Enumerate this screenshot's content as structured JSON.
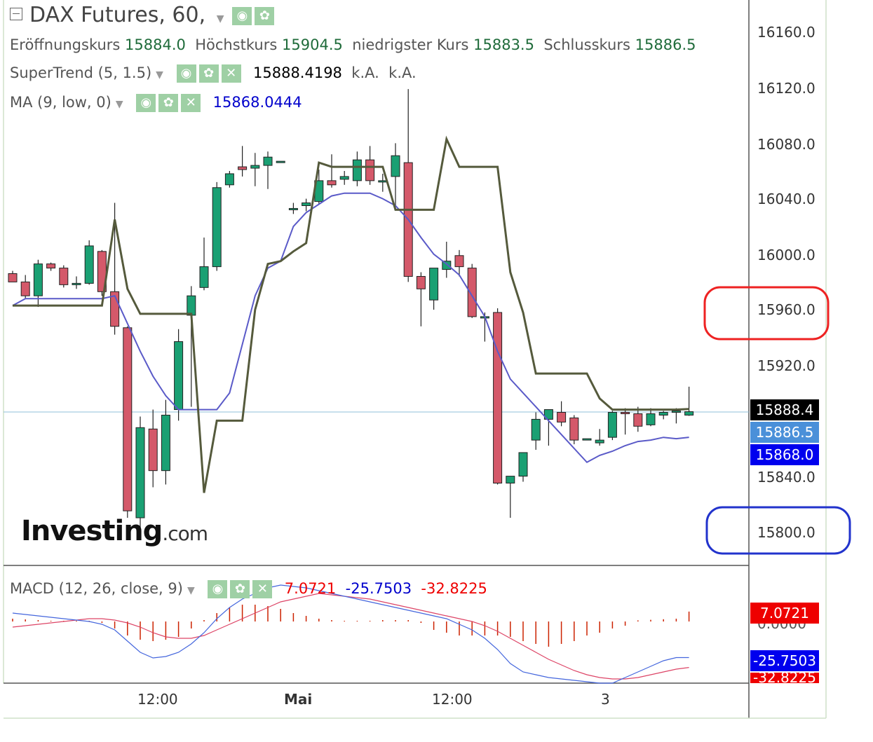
{
  "header": {
    "title": "DAX Futures, 60,",
    "ohlc": [
      {
        "label": "Eröffnungskurs",
        "value": "15884.0"
      },
      {
        "label": "Höchstkurs",
        "value": "15904.5"
      },
      {
        "label": "niedrigster Kurs",
        "value": "15883.5"
      },
      {
        "label": "Schlusskurs",
        "value": "15886.5"
      }
    ]
  },
  "indicators": {
    "supertrend": {
      "label": "SuperTrend (5, 1.5)",
      "value": "15888.4198",
      "extra1": "k.A.",
      "extra2": "k.A."
    },
    "ma": {
      "label": "MA (9, low, 0)",
      "value": "15868.0444"
    },
    "macd": {
      "label": "MACD (12, 26, close, 9)",
      "v1": "7.0721",
      "v2": "-25.7503",
      "v3": "-32.8225"
    }
  },
  "price_axis": {
    "ticks": [
      "16160.0",
      "16120.0",
      "16080.0",
      "16040.0",
      "16000.0",
      "15960.0",
      "15920.0",
      "15840.0",
      "15800.0"
    ],
    "tags": [
      {
        "name": "supertrend-tag",
        "text": "15888.4",
        "color": "#000000"
      },
      {
        "name": "close-tag",
        "text": "15886.5",
        "color": "#4a90d9"
      },
      {
        "name": "ma-tag",
        "text": "15868.0",
        "color": "#0000ee"
      }
    ]
  },
  "macd_axis": {
    "tags": [
      {
        "name": "macd-tag",
        "text": "7.0721",
        "color": "#ee0000"
      },
      {
        "name": "signal-tag",
        "text": "-25.7503",
        "color": "#0000ee"
      },
      {
        "name": "hist-tag",
        "text": "-32.8225",
        "color": "#ee0000"
      }
    ],
    "zero_label": "0.0000"
  },
  "time_axis": {
    "ticks": [
      "12:00",
      "Mai",
      "12:00",
      "3"
    ]
  },
  "logo": {
    "main": "Investing",
    "suffix": ".com"
  },
  "colors": {
    "up": "#1aa073",
    "down": "#d4596a",
    "supertrend": "#555a3c",
    "ma": "#5a5ac8",
    "macd_line": "#4466dd",
    "signal_line": "#dd4466",
    "hist": "#cc2200",
    "annot_red": "#ee2222",
    "annot_blue": "#2233cc"
  },
  "chart_data": {
    "type": "candlestick",
    "ylim": [
      15800,
      16160
    ],
    "candles": [
      {
        "o": 15986,
        "h": 15988,
        "l": 15980,
        "c": 15980
      },
      {
        "o": 15980,
        "h": 15985,
        "l": 15968,
        "c": 15970
      },
      {
        "o": 15970,
        "h": 15996,
        "l": 15962,
        "c": 15993
      },
      {
        "o": 15993,
        "h": 15994,
        "l": 15988,
        "c": 15990
      },
      {
        "o": 15990,
        "h": 15992,
        "l": 15976,
        "c": 15978
      },
      {
        "o": 15978,
        "h": 15984,
        "l": 15975,
        "c": 15979
      },
      {
        "o": 15979,
        "h": 16010,
        "l": 15978,
        "c": 16006
      },
      {
        "o": 16002,
        "h": 16003,
        "l": 15970,
        "c": 15973
      },
      {
        "o": 15973,
        "h": 16037,
        "l": 15942,
        "c": 15948
      },
      {
        "o": 15947,
        "h": 15948,
        "l": 15810,
        "c": 15815
      },
      {
        "o": 15810,
        "h": 15883,
        "l": 15802,
        "c": 15875
      },
      {
        "o": 15874,
        "h": 15888,
        "l": 15832,
        "c": 15844
      },
      {
        "o": 15844,
        "h": 15895,
        "l": 15834,
        "c": 15884
      },
      {
        "o": 15888,
        "h": 15946,
        "l": 15880,
        "c": 15937
      },
      {
        "o": 15956,
        "h": 15977,
        "l": 15890,
        "c": 15970
      },
      {
        "o": 15976,
        "h": 16012,
        "l": 15974,
        "c": 15991
      },
      {
        "o": 15991,
        "h": 16052,
        "l": 15988,
        "c": 16048
      },
      {
        "o": 16050,
        "h": 16060,
        "l": 16048,
        "c": 16058
      },
      {
        "o": 16063,
        "h": 16078,
        "l": 16056,
        "c": 16061
      },
      {
        "o": 16062,
        "h": 16073,
        "l": 16049,
        "c": 16064
      },
      {
        "o": 16064,
        "h": 16074,
        "l": 16047,
        "c": 16070
      },
      {
        "o": 16067,
        "h": 16067,
        "l": 16066,
        "c": 16067
      },
      {
        "o": 16033,
        "h": 16037,
        "l": 16029,
        "c": 16033
      },
      {
        "o": 16035,
        "h": 16040,
        "l": 16031,
        "c": 16037
      },
      {
        "o": 16038,
        "h": 16061,
        "l": 16036,
        "c": 16053
      },
      {
        "o": 16053,
        "h": 16072,
        "l": 16048,
        "c": 16050
      },
      {
        "o": 16054,
        "h": 16060,
        "l": 16050,
        "c": 16056
      },
      {
        "o": 16053,
        "h": 16074,
        "l": 16049,
        "c": 16068
      },
      {
        "o": 16068,
        "h": 16078,
        "l": 16050,
        "c": 16053
      },
      {
        "o": 16052,
        "h": 16058,
        "l": 16045,
        "c": 16053
      },
      {
        "o": 16056,
        "h": 16080,
        "l": 16033,
        "c": 16071
      },
      {
        "o": 16066,
        "h": 16119,
        "l": 15980,
        "c": 15984
      },
      {
        "o": 15984,
        "h": 15987,
        "l": 15948,
        "c": 15975
      },
      {
        "o": 15967,
        "h": 15990,
        "l": 15960,
        "c": 15990
      },
      {
        "o": 15989,
        "h": 16009,
        "l": 15983,
        "c": 15995
      },
      {
        "o": 15999,
        "h": 16003,
        "l": 15984,
        "c": 15991
      },
      {
        "o": 15990,
        "h": 15993,
        "l": 15954,
        "c": 15955
      },
      {
        "o": 15954,
        "h": 15958,
        "l": 15937,
        "c": 15955
      },
      {
        "o": 15958,
        "h": 15961,
        "l": 15834,
        "c": 15835
      },
      {
        "o": 15835,
        "h": 15840,
        "l": 15810,
        "c": 15840
      },
      {
        "o": 15840,
        "h": 15854,
        "l": 15836,
        "c": 15857
      },
      {
        "o": 15866,
        "h": 15886,
        "l": 15859,
        "c": 15881
      },
      {
        "o": 15881,
        "h": 15887,
        "l": 15862,
        "c": 15888
      },
      {
        "o": 15886,
        "h": 15894,
        "l": 15876,
        "c": 15879
      },
      {
        "o": 15882,
        "h": 15884,
        "l": 15863,
        "c": 15866
      },
      {
        "o": 15866,
        "h": 15866,
        "l": 15866,
        "c": 15867
      },
      {
        "o": 15864,
        "h": 15874,
        "l": 15862,
        "c": 15866
      },
      {
        "o": 15868,
        "h": 15887,
        "l": 15866,
        "c": 15886
      },
      {
        "o": 15886,
        "h": 15889,
        "l": 15870,
        "c": 15885
      },
      {
        "o": 15885,
        "h": 15890,
        "l": 15872,
        "c": 15876
      },
      {
        "o": 15877,
        "h": 15889,
        "l": 15876,
        "c": 15885
      },
      {
        "o": 15884,
        "h": 15887,
        "l": 15881,
        "c": 15886
      },
      {
        "o": 15886,
        "h": 15889,
        "l": 15878,
        "c": 15887
      },
      {
        "o": 15884,
        "h": 15904.5,
        "l": 15883.5,
        "c": 15886.5
      }
    ],
    "supertrend": [
      15963,
      15963,
      15963,
      15963,
      15963,
      15963,
      15963,
      15963,
      16025,
      15975,
      15957,
      15957,
      15957,
      15957,
      15957,
      15828,
      15880,
      15880,
      15880,
      15960,
      15993,
      15995,
      16002,
      16008,
      16066,
      16063,
      16063,
      16063,
      16063,
      16063,
      16032,
      16032,
      16032,
      16032,
      16083,
      16063,
      16063,
      16063,
      16063,
      15987,
      15958,
      15914,
      15914,
      15914,
      15914,
      15914,
      15896,
      15888,
      15888,
      15888,
      15888,
      15888,
      15888,
      15888.4
    ],
    "ma": [
      15963,
      15968,
      15968,
      15968,
      15968,
      15968,
      15968,
      15968,
      15970,
      15950,
      15930,
      15912,
      15898,
      15888,
      15888,
      15888,
      15888,
      15900,
      15935,
      15970,
      15990,
      15995,
      16020,
      16030,
      16036,
      16042,
      16044,
      16044,
      16044,
      16040,
      16035,
      16025,
      16012,
      16000,
      15993,
      15985,
      15970,
      15955,
      15930,
      15910,
      15900,
      15890,
      15880,
      15870,
      15860,
      15850,
      15855,
      15858,
      15862,
      15865,
      15866,
      15868,
      15867,
      15868.0444
    ],
    "macd_line": [
      6,
      5,
      4,
      3,
      2,
      1,
      0,
      -2,
      -6,
      -14,
      -22,
      -26,
      -25,
      -22,
      -16,
      -8,
      2,
      10,
      16,
      20,
      24,
      26,
      25,
      24,
      22,
      20,
      18,
      16,
      14,
      12,
      10,
      8,
      6,
      4,
      2,
      -2,
      -6,
      -12,
      -20,
      -30,
      -36,
      -38,
      -40,
      -41,
      -42,
      -43,
      -44,
      -44,
      -40,
      -36,
      -32,
      -28,
      -25.7503,
      -25.7503
    ],
    "signal_line": [
      -4,
      -3,
      -2,
      -1,
      0,
      1,
      2,
      2,
      1,
      -1,
      -4,
      -8,
      -11,
      -12,
      -12,
      -10,
      -6,
      -2,
      2,
      6,
      10,
      14,
      16,
      18,
      20,
      19,
      18,
      17,
      16,
      14,
      12,
      10,
      8,
      6,
      4,
      2,
      0,
      -3,
      -7,
      -12,
      -17,
      -22,
      -27,
      -31,
      -35,
      -38,
      -40,
      -41,
      -41,
      -40,
      -38,
      -36,
      -34,
      -32.8225
    ],
    "histogram": [
      2,
      1.5,
      1,
      0.5,
      0.5,
      0.5,
      0.5,
      -1,
      -5,
      -10,
      -13,
      -14,
      -13,
      -11,
      -5,
      1,
      6,
      10,
      12,
      12,
      11,
      9,
      6,
      4,
      2,
      1,
      0.5,
      0.5,
      0.5,
      1,
      1,
      1,
      -1,
      -6,
      -8,
      -10,
      -10,
      -10,
      -10,
      -11,
      -14,
      -16,
      -18,
      -16,
      -14,
      -10,
      -8,
      -5,
      -3,
      0.8,
      1.2,
      1.6,
      2,
      7.0721
    ]
  }
}
